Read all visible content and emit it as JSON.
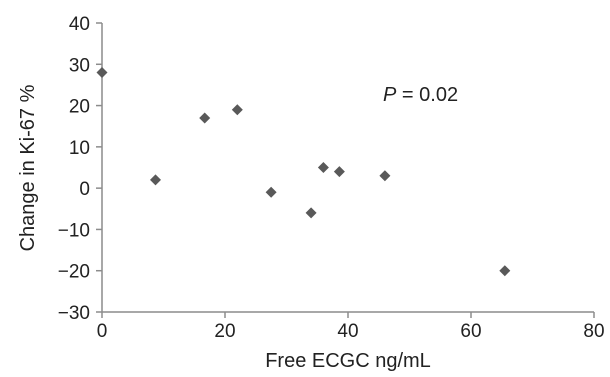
{
  "chart_data": {
    "type": "scatter",
    "title": "",
    "xlabel": "Free ECGC ng/mL",
    "ylabel": "Change in Ki-67 %",
    "xlim": [
      0,
      80
    ],
    "ylim": [
      -30,
      40
    ],
    "xticks": [
      0,
      20,
      40,
      60,
      80
    ],
    "yticks": [
      40,
      30,
      20,
      10,
      0,
      -10,
      -20,
      -30
    ],
    "ytick_labels": [
      "40",
      "30",
      "20",
      "10",
      "0",
      "−10",
      "−20",
      "−30"
    ],
    "grid": false,
    "marker": "diamond",
    "marker_color": "#595959",
    "axis_color": "#8c8c8c",
    "annotation": {
      "italic": "P",
      "text": " = 0.02"
    },
    "series": [
      {
        "points": [
          {
            "x": 0,
            "y": 28
          },
          {
            "x": 8.7,
            "y": 2
          },
          {
            "x": 16.7,
            "y": 17
          },
          {
            "x": 22,
            "y": 19
          },
          {
            "x": 27.5,
            "y": -1
          },
          {
            "x": 34,
            "y": -6
          },
          {
            "x": 36,
            "y": 5
          },
          {
            "x": 38.6,
            "y": 4
          },
          {
            "x": 46,
            "y": 3
          },
          {
            "x": 65.5,
            "y": -20
          }
        ]
      }
    ]
  }
}
